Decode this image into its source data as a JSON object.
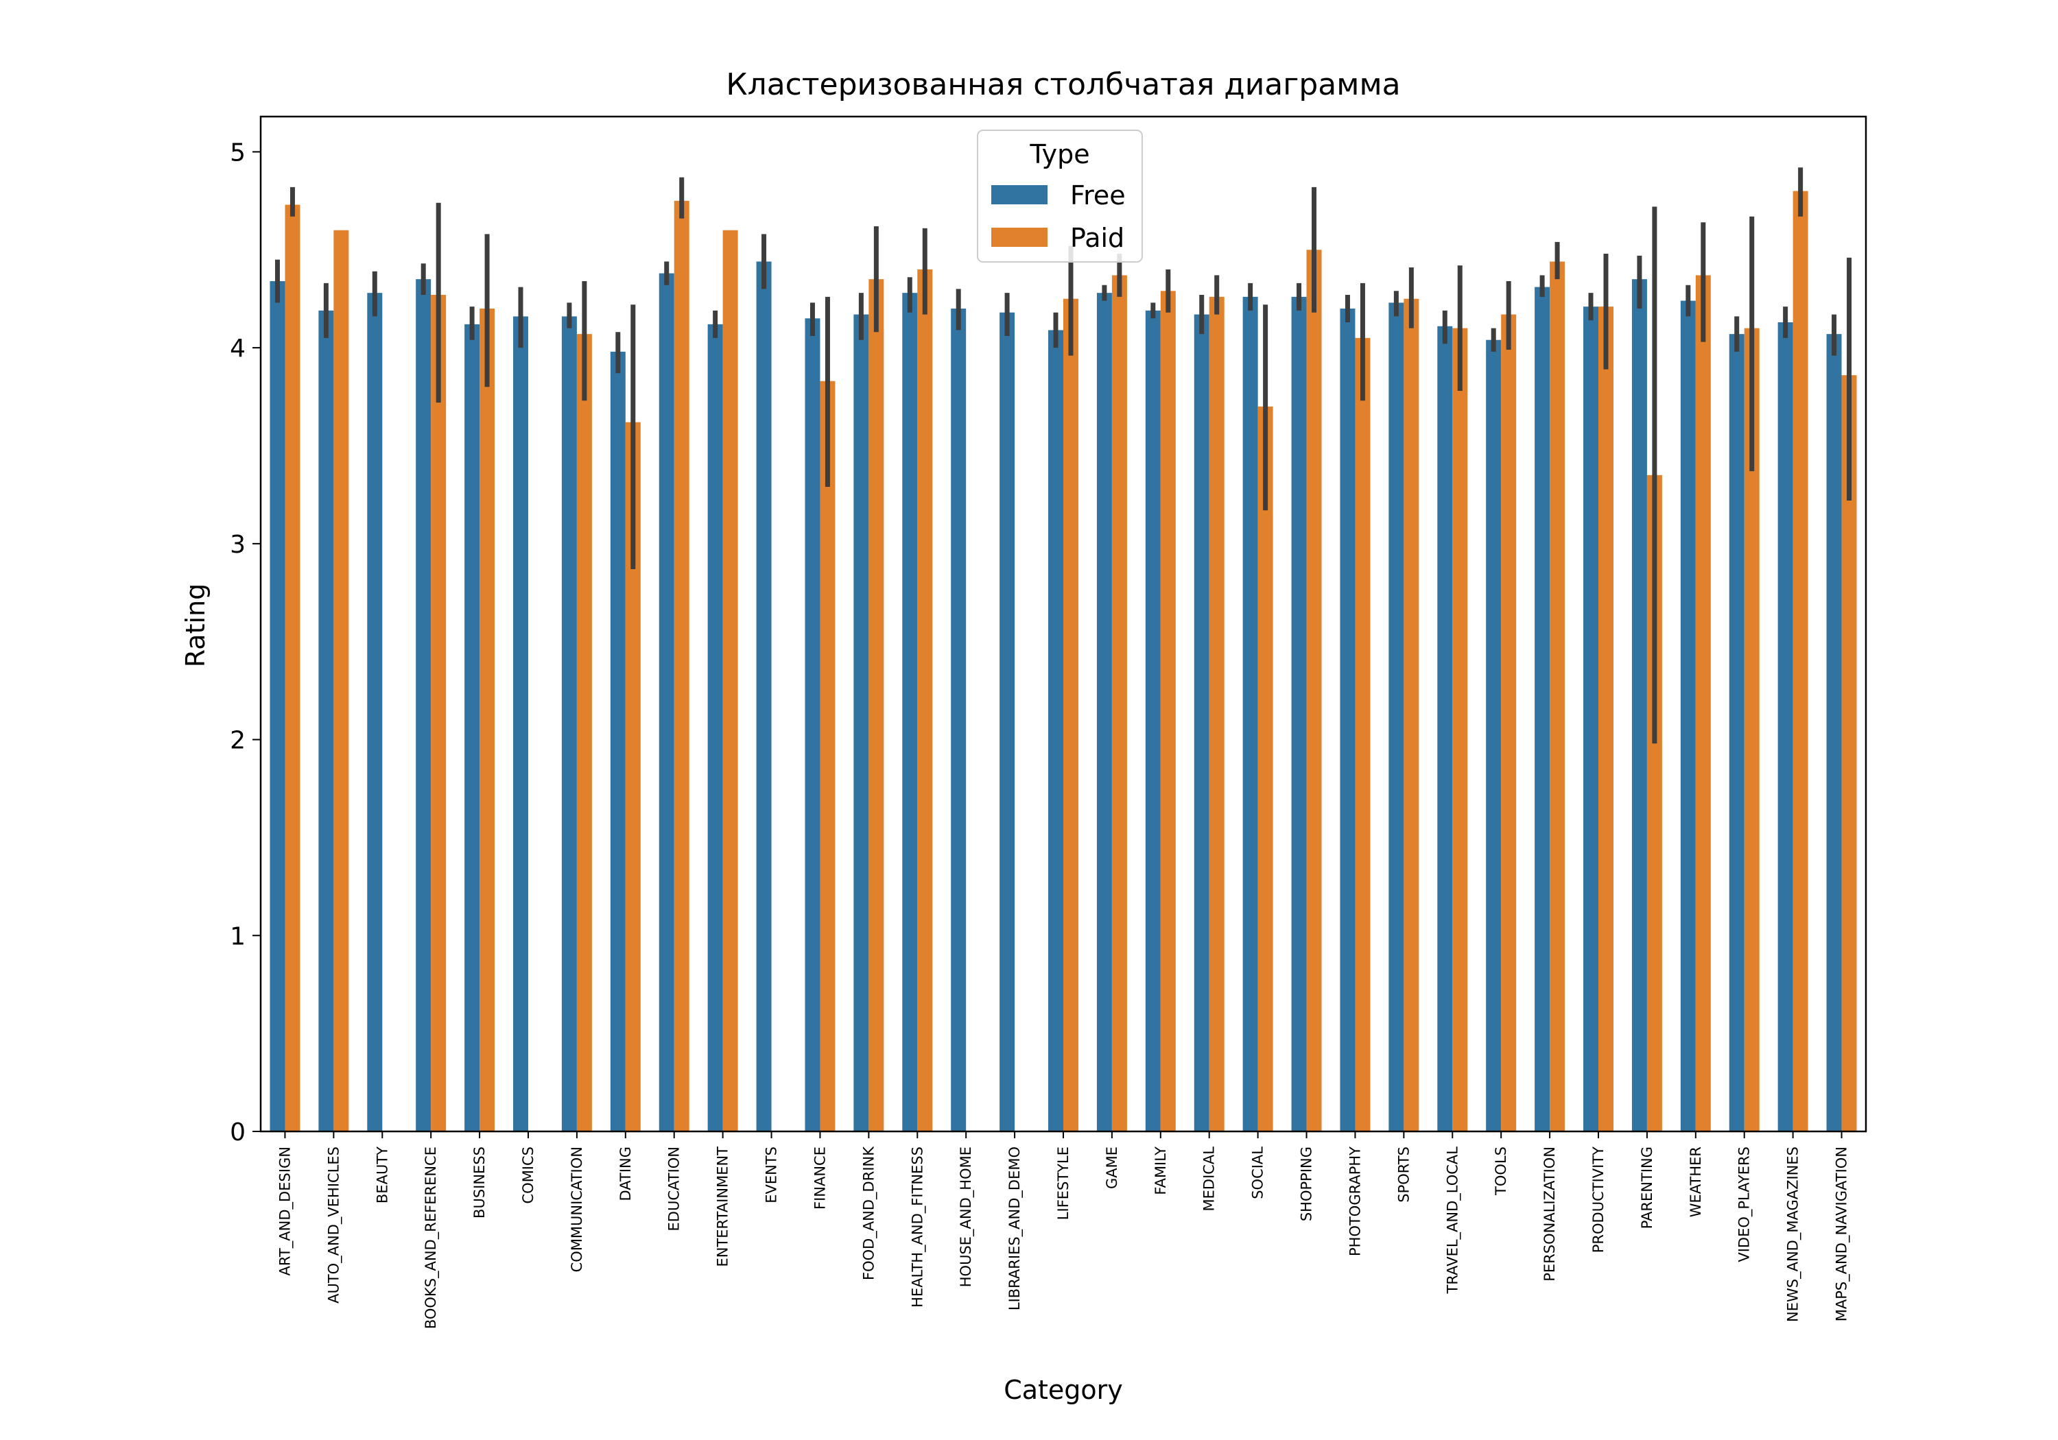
{
  "chart_data": {
    "type": "bar",
    "title": "Кластеризованная столбчатая диаграмма",
    "xlabel": "Category",
    "ylabel": "Rating",
    "ylim": [
      0,
      5.18
    ],
    "yticks": [
      0,
      1,
      2,
      3,
      4,
      5
    ],
    "grid": false,
    "legend": {
      "title": "Type",
      "placement": "top-center"
    },
    "categories": [
      "ART_AND_DESIGN",
      "AUTO_AND_VEHICLES",
      "BEAUTY",
      "BOOKS_AND_REFERENCE",
      "BUSINESS",
      "COMICS",
      "COMMUNICATION",
      "DATING",
      "EDUCATION",
      "ENTERTAINMENT",
      "EVENTS",
      "FINANCE",
      "FOOD_AND_DRINK",
      "HEALTH_AND_FITNESS",
      "HOUSE_AND_HOME",
      "LIBRARIES_AND_DEMO",
      "LIFESTYLE",
      "GAME",
      "FAMILY",
      "MEDICAL",
      "SOCIAL",
      "SHOPPING",
      "PHOTOGRAPHY",
      "SPORTS",
      "TRAVEL_AND_LOCAL",
      "TOOLS",
      "PERSONALIZATION",
      "PRODUCTIVITY",
      "PARENTING",
      "WEATHER",
      "VIDEO_PLAYERS",
      "NEWS_AND_MAGAZINES",
      "MAPS_AND_NAVIGATION"
    ],
    "series": [
      {
        "name": "Free",
        "color": "#3274a1",
        "values": [
          4.34,
          4.19,
          4.28,
          4.35,
          4.12,
          4.16,
          4.16,
          3.98,
          4.38,
          4.12,
          4.44,
          4.15,
          4.17,
          4.28,
          4.2,
          4.18,
          4.09,
          4.28,
          4.19,
          4.17,
          4.26,
          4.26,
          4.2,
          4.23,
          4.11,
          4.04,
          4.31,
          4.21,
          4.35,
          4.24,
          4.07,
          4.13,
          4.07
        ],
        "err_low": [
          4.23,
          4.05,
          4.16,
          4.27,
          4.04,
          4.0,
          4.1,
          3.87,
          4.32,
          4.05,
          4.3,
          4.06,
          4.04,
          4.18,
          4.09,
          4.06,
          4.0,
          4.24,
          4.15,
          4.07,
          4.19,
          4.19,
          4.13,
          4.16,
          4.02,
          3.98,
          4.26,
          4.14,
          4.2,
          4.16,
          3.98,
          4.05,
          3.96
        ],
        "err_high": [
          4.45,
          4.33,
          4.39,
          4.43,
          4.21,
          4.31,
          4.23,
          4.08,
          4.44,
          4.19,
          4.58,
          4.23,
          4.28,
          4.36,
          4.3,
          4.28,
          4.18,
          4.32,
          4.23,
          4.27,
          4.33,
          4.33,
          4.27,
          4.29,
          4.19,
          4.1,
          4.37,
          4.28,
          4.47,
          4.32,
          4.16,
          4.21,
          4.17
        ]
      },
      {
        "name": "Paid",
        "color": "#e1812c",
        "values": [
          4.73,
          4.6,
          null,
          4.27,
          4.2,
          null,
          4.07,
          3.62,
          4.75,
          4.6,
          null,
          3.83,
          4.35,
          4.4,
          null,
          null,
          4.25,
          4.37,
          4.29,
          4.26,
          3.7,
          4.5,
          4.05,
          4.25,
          4.1,
          4.17,
          4.44,
          4.21,
          3.35,
          4.37,
          4.1,
          4.8,
          3.86
        ],
        "err_low": [
          4.67,
          4.6,
          null,
          3.72,
          3.8,
          null,
          3.73,
          2.87,
          4.66,
          4.6,
          null,
          3.29,
          4.08,
          4.17,
          null,
          null,
          3.96,
          4.26,
          4.18,
          4.17,
          3.17,
          4.18,
          3.73,
          4.1,
          3.78,
          3.99,
          4.35,
          3.89,
          1.98,
          4.03,
          3.37,
          4.67,
          3.22
        ],
        "err_high": [
          4.82,
          4.6,
          null,
          4.74,
          4.58,
          null,
          4.34,
          4.22,
          4.87,
          4.6,
          null,
          4.26,
          4.62,
          4.61,
          null,
          null,
          4.52,
          4.48,
          4.4,
          4.37,
          4.22,
          4.82,
          4.33,
          4.41,
          4.42,
          4.34,
          4.54,
          4.48,
          4.72,
          4.64,
          4.67,
          4.92,
          4.46
        ]
      }
    ]
  }
}
